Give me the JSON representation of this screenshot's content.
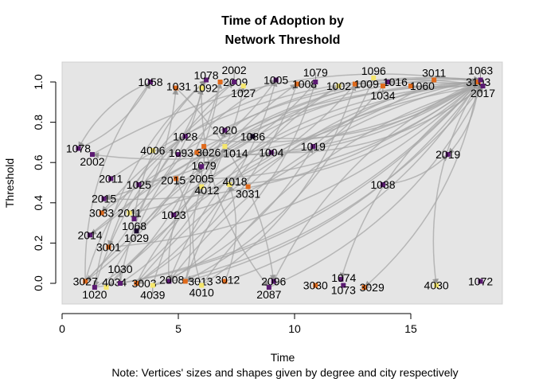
{
  "chart_data": {
    "type": "scatter",
    "title": "Time of Adoption by\nNetwork Threshold",
    "title_lines": [
      "Time of Adoption by",
      "Network Threshold"
    ],
    "xlabel": "Time",
    "ylabel": "Threshold",
    "note": "Note: Vertices' sizes and shapes given by degree and city respectively",
    "xlim": [
      0,
      19
    ],
    "ylim": [
      -0.1,
      1.1
    ],
    "xticks": [
      0,
      5,
      10,
      15
    ],
    "yticks": [
      0.0,
      0.2,
      0.4,
      0.6,
      0.8,
      1.0
    ],
    "ytick_labels": [
      "0.0",
      "0.2",
      "0.4",
      "0.6",
      "0.8",
      "1.0"
    ],
    "background": "#e5e5e5",
    "edge_color": "#a6a6a6",
    "grid": false,
    "nodes": [
      {
        "label": "1058",
        "t": 3.8,
        "thr": 1.0,
        "c": "#5b1a72"
      },
      {
        "label": "1031",
        "t": 4.9,
        "thr": 0.97,
        "c": "#e06a1c"
      },
      {
        "label": "1092",
        "t": 6.0,
        "thr": 0.97,
        "c": "#f5e66b"
      },
      {
        "label": "1078",
        "t": 6.2,
        "thr": 1.01,
        "c": "#5b1a72"
      },
      {
        "label": "2009",
        "t": 6.8,
        "thr": 1.0,
        "c": "#e06a1c"
      },
      {
        "label": "2002",
        "t": 7.4,
        "thr": 1.0,
        "c": "#5b1a72"
      },
      {
        "label": "1027",
        "t": 7.8,
        "thr": 0.98,
        "c": "#f5e66b"
      },
      {
        "label": "1005",
        "t": 9.2,
        "thr": 1.01,
        "c": "#5b1a72"
      },
      {
        "label": "1008",
        "t": 10.1,
        "thr": 0.99,
        "c": "#e06a1c"
      },
      {
        "label": "1079",
        "t": 10.9,
        "thr": 1.0,
        "c": "#5b1a72"
      },
      {
        "label": "1002",
        "t": 11.9,
        "thr": 0.98,
        "c": "#f5e66b"
      },
      {
        "label": "1009",
        "t": 12.6,
        "thr": 0.99,
        "c": "#e06a1c"
      },
      {
        "label": "1096",
        "t": 13.4,
        "thr": 1.02,
        "c": "#f5e66b"
      },
      {
        "label": "1016",
        "t": 14.0,
        "thr": 1.0,
        "c": "#5b1a72"
      },
      {
        "label": "1034",
        "t": 13.8,
        "thr": 0.98,
        "c": "#e06a1c"
      },
      {
        "label": "1060",
        "t": 15.0,
        "thr": 0.98,
        "c": "#e06a1c"
      },
      {
        "label": "3011",
        "t": 16.0,
        "thr": 1.01,
        "c": "#e06a1c"
      },
      {
        "label": "3103",
        "t": 17.9,
        "thr": 1.0,
        "c": "#e06a1c"
      },
      {
        "label": "1063",
        "t": 18.0,
        "thr": 1.01,
        "c": "#5b1a72"
      },
      {
        "label": "2017",
        "t": 18.1,
        "thr": 0.98,
        "c": "#5b1a72"
      },
      {
        "label": "2020",
        "t": 7.0,
        "thr": 0.76,
        "c": "#5b1a72"
      },
      {
        "label": "1086",
        "t": 8.2,
        "thr": 0.73,
        "c": "#1a0a2e"
      },
      {
        "label": "1028",
        "t": 5.3,
        "thr": 0.73,
        "c": "#5b1a72"
      },
      {
        "label": "1078",
        "t": 0.7,
        "thr": 0.67,
        "c": "#5b1a72"
      },
      {
        "label": "2002",
        "t": 1.3,
        "thr": 0.64,
        "c": "#5b1a72"
      },
      {
        "label": "4006",
        "t": 3.9,
        "thr": 0.66,
        "c": "#f5e66b"
      },
      {
        "label": "1093",
        "t": 5.0,
        "thr": 0.64,
        "c": "#5b1a72"
      },
      {
        "label": "3026",
        "t": 5.8,
        "thr": 0.65,
        "c": "#e06a1c"
      },
      {
        "label": "1079",
        "t": 6.1,
        "thr": 0.68,
        "c": "#e06a1c"
      },
      {
        "label": "1014",
        "t": 7.0,
        "thr": 0.68,
        "c": "#f5e66b"
      },
      {
        "label": "1004",
        "t": 9.0,
        "thr": 0.65,
        "c": "#5b1a72"
      },
      {
        "label": "1019",
        "t": 10.8,
        "thr": 0.68,
        "c": "#5b1a72"
      },
      {
        "label": "2019",
        "t": 16.6,
        "thr": 0.64,
        "c": "#5b1a72"
      },
      {
        "label": "2005",
        "t": 6.0,
        "thr": 0.58,
        "c": "#5b1a72"
      },
      {
        "label": "2011",
        "t": 2.1,
        "thr": 0.52,
        "c": "#5b1a72"
      },
      {
        "label": "1025",
        "t": 3.3,
        "thr": 0.49,
        "c": "#5b1a72"
      },
      {
        "label": "2015",
        "t": 4.9,
        "thr": 0.52,
        "c": "#e06a1c"
      },
      {
        "label": "4012",
        "t": 6.0,
        "thr": 0.48,
        "c": "#f5e66b"
      },
      {
        "label": "4018",
        "t": 7.2,
        "thr": 0.49,
        "c": "#f5e66b"
      },
      {
        "label": "3031",
        "t": 8.0,
        "thr": 0.48,
        "c": "#e06a1c"
      },
      {
        "label": "1038",
        "t": 13.8,
        "thr": 0.49,
        "c": "#5b1a72"
      },
      {
        "label": "2015",
        "t": 1.8,
        "thr": 0.42,
        "c": "#5b1a72"
      },
      {
        "label": "3033",
        "t": 1.7,
        "thr": 0.35,
        "c": "#e06a1c"
      },
      {
        "label": "2011",
        "t": 2.9,
        "thr": 0.35,
        "c": "#f5e66b"
      },
      {
        "label": "1068",
        "t": 3.1,
        "thr": 0.32,
        "c": "#5b1a72"
      },
      {
        "label": "1023",
        "t": 4.8,
        "thr": 0.34,
        "c": "#5b1a72"
      },
      {
        "label": "1029",
        "t": 3.2,
        "thr": 0.26,
        "c": "#1a0a2e"
      },
      {
        "label": "2014",
        "t": 1.2,
        "thr": 0.24,
        "c": "#5b1a72"
      },
      {
        "label": "3001",
        "t": 2.0,
        "thr": 0.18,
        "c": "#e06a1c"
      },
      {
        "label": "3027",
        "t": 1.0,
        "thr": 0.01,
        "c": "#e06a1c"
      },
      {
        "label": "1020",
        "t": 1.4,
        "thr": -0.02,
        "c": "#5b1a72"
      },
      {
        "label": "4034",
        "t": 1.9,
        "thr": -0.02,
        "c": "#f5e66b"
      },
      {
        "label": "1030",
        "t": 2.5,
        "thr": 0.0,
        "c": "#5b1a72"
      },
      {
        "label": "3003",
        "t": 3.2,
        "thr": 0.0,
        "c": "#e06a1c"
      },
      {
        "label": "4039",
        "t": 3.9,
        "thr": -0.01,
        "c": "#f5e66b"
      },
      {
        "label": "2008",
        "t": 4.6,
        "thr": 0.01,
        "c": "#5b1a72"
      },
      {
        "label": "3013",
        "t": 5.3,
        "thr": 0.01,
        "c": "#e06a1c"
      },
      {
        "label": "4010",
        "t": 6.0,
        "thr": -0.01,
        "c": "#f5e66b"
      },
      {
        "label": "3012",
        "t": 7.0,
        "thr": 0.01,
        "c": "#e06a1c"
      },
      {
        "label": "2096",
        "t": 9.1,
        "thr": 0.01,
        "c": "#5b1a72"
      },
      {
        "label": "2087",
        "t": 8.9,
        "thr": -0.02,
        "c": "#5b1a72"
      },
      {
        "label": "3030",
        "t": 10.9,
        "thr": -0.01,
        "c": "#e06a1c"
      },
      {
        "label": "1074",
        "t": 12.0,
        "thr": 0.02,
        "c": "#5b1a72"
      },
      {
        "label": "1073",
        "t": 12.1,
        "thr": -0.01,
        "c": "#5b1a72"
      },
      {
        "label": "3029",
        "t": 13.0,
        "thr": -0.02,
        "c": "#e06a1c"
      },
      {
        "label": "4030",
        "t": 16.1,
        "thr": -0.01,
        "c": "#f5e66b"
      },
      {
        "label": "1072",
        "t": 18.0,
        "thr": 0.01,
        "c": "#5b1a72"
      }
    ],
    "edges": [
      [
        49,
        0
      ],
      [
        49,
        1
      ],
      [
        50,
        3
      ],
      [
        51,
        4
      ],
      [
        52,
        5
      ],
      [
        53,
        7
      ],
      [
        54,
        8
      ],
      [
        55,
        9
      ],
      [
        56,
        10
      ],
      [
        57,
        11
      ],
      [
        49,
        17
      ],
      [
        50,
        18
      ],
      [
        51,
        19
      ],
      [
        52,
        17
      ],
      [
        53,
        18
      ],
      [
        54,
        19
      ],
      [
        55,
        17
      ],
      [
        56,
        18
      ],
      [
        57,
        19
      ],
      [
        58,
        17
      ],
      [
        59,
        18
      ],
      [
        60,
        19
      ],
      [
        47,
        17
      ],
      [
        48,
        18
      ],
      [
        42,
        19
      ],
      [
        41,
        17
      ],
      [
        34,
        18
      ],
      [
        23,
        0
      ],
      [
        24,
        17
      ],
      [
        25,
        18
      ],
      [
        26,
        19
      ],
      [
        27,
        17
      ],
      [
        33,
        18
      ],
      [
        36,
        17
      ],
      [
        37,
        19
      ],
      [
        38,
        18
      ],
      [
        39,
        17
      ],
      [
        22,
        18
      ],
      [
        20,
        19
      ],
      [
        21,
        17
      ],
      [
        29,
        18
      ],
      [
        30,
        19
      ],
      [
        31,
        17
      ],
      [
        40,
        32
      ],
      [
        17,
        32
      ],
      [
        18,
        65
      ],
      [
        17,
        64
      ],
      [
        19,
        62
      ],
      [
        1,
        59
      ],
      [
        2,
        60
      ],
      [
        4,
        49
      ],
      [
        6,
        50
      ],
      [
        8,
        53
      ],
      [
        10,
        55
      ],
      [
        12,
        56
      ],
      [
        0,
        23
      ],
      [
        3,
        47
      ],
      [
        5,
        48
      ],
      [
        7,
        41
      ],
      [
        9,
        42
      ],
      [
        11,
        43
      ],
      [
        13,
        44
      ],
      [
        14,
        45
      ],
      [
        15,
        46
      ],
      [
        16,
        24
      ],
      [
        43,
        2
      ],
      [
        44,
        3
      ],
      [
        45,
        6
      ],
      [
        46,
        7
      ],
      [
        35,
        9
      ],
      [
        49,
        22
      ],
      [
        50,
        20
      ],
      [
        51,
        21
      ],
      [
        52,
        29
      ],
      [
        53,
        30
      ],
      [
        54,
        31
      ],
      [
        55,
        33
      ],
      [
        56,
        36
      ],
      [
        57,
        37
      ],
      [
        58,
        38
      ]
    ]
  }
}
